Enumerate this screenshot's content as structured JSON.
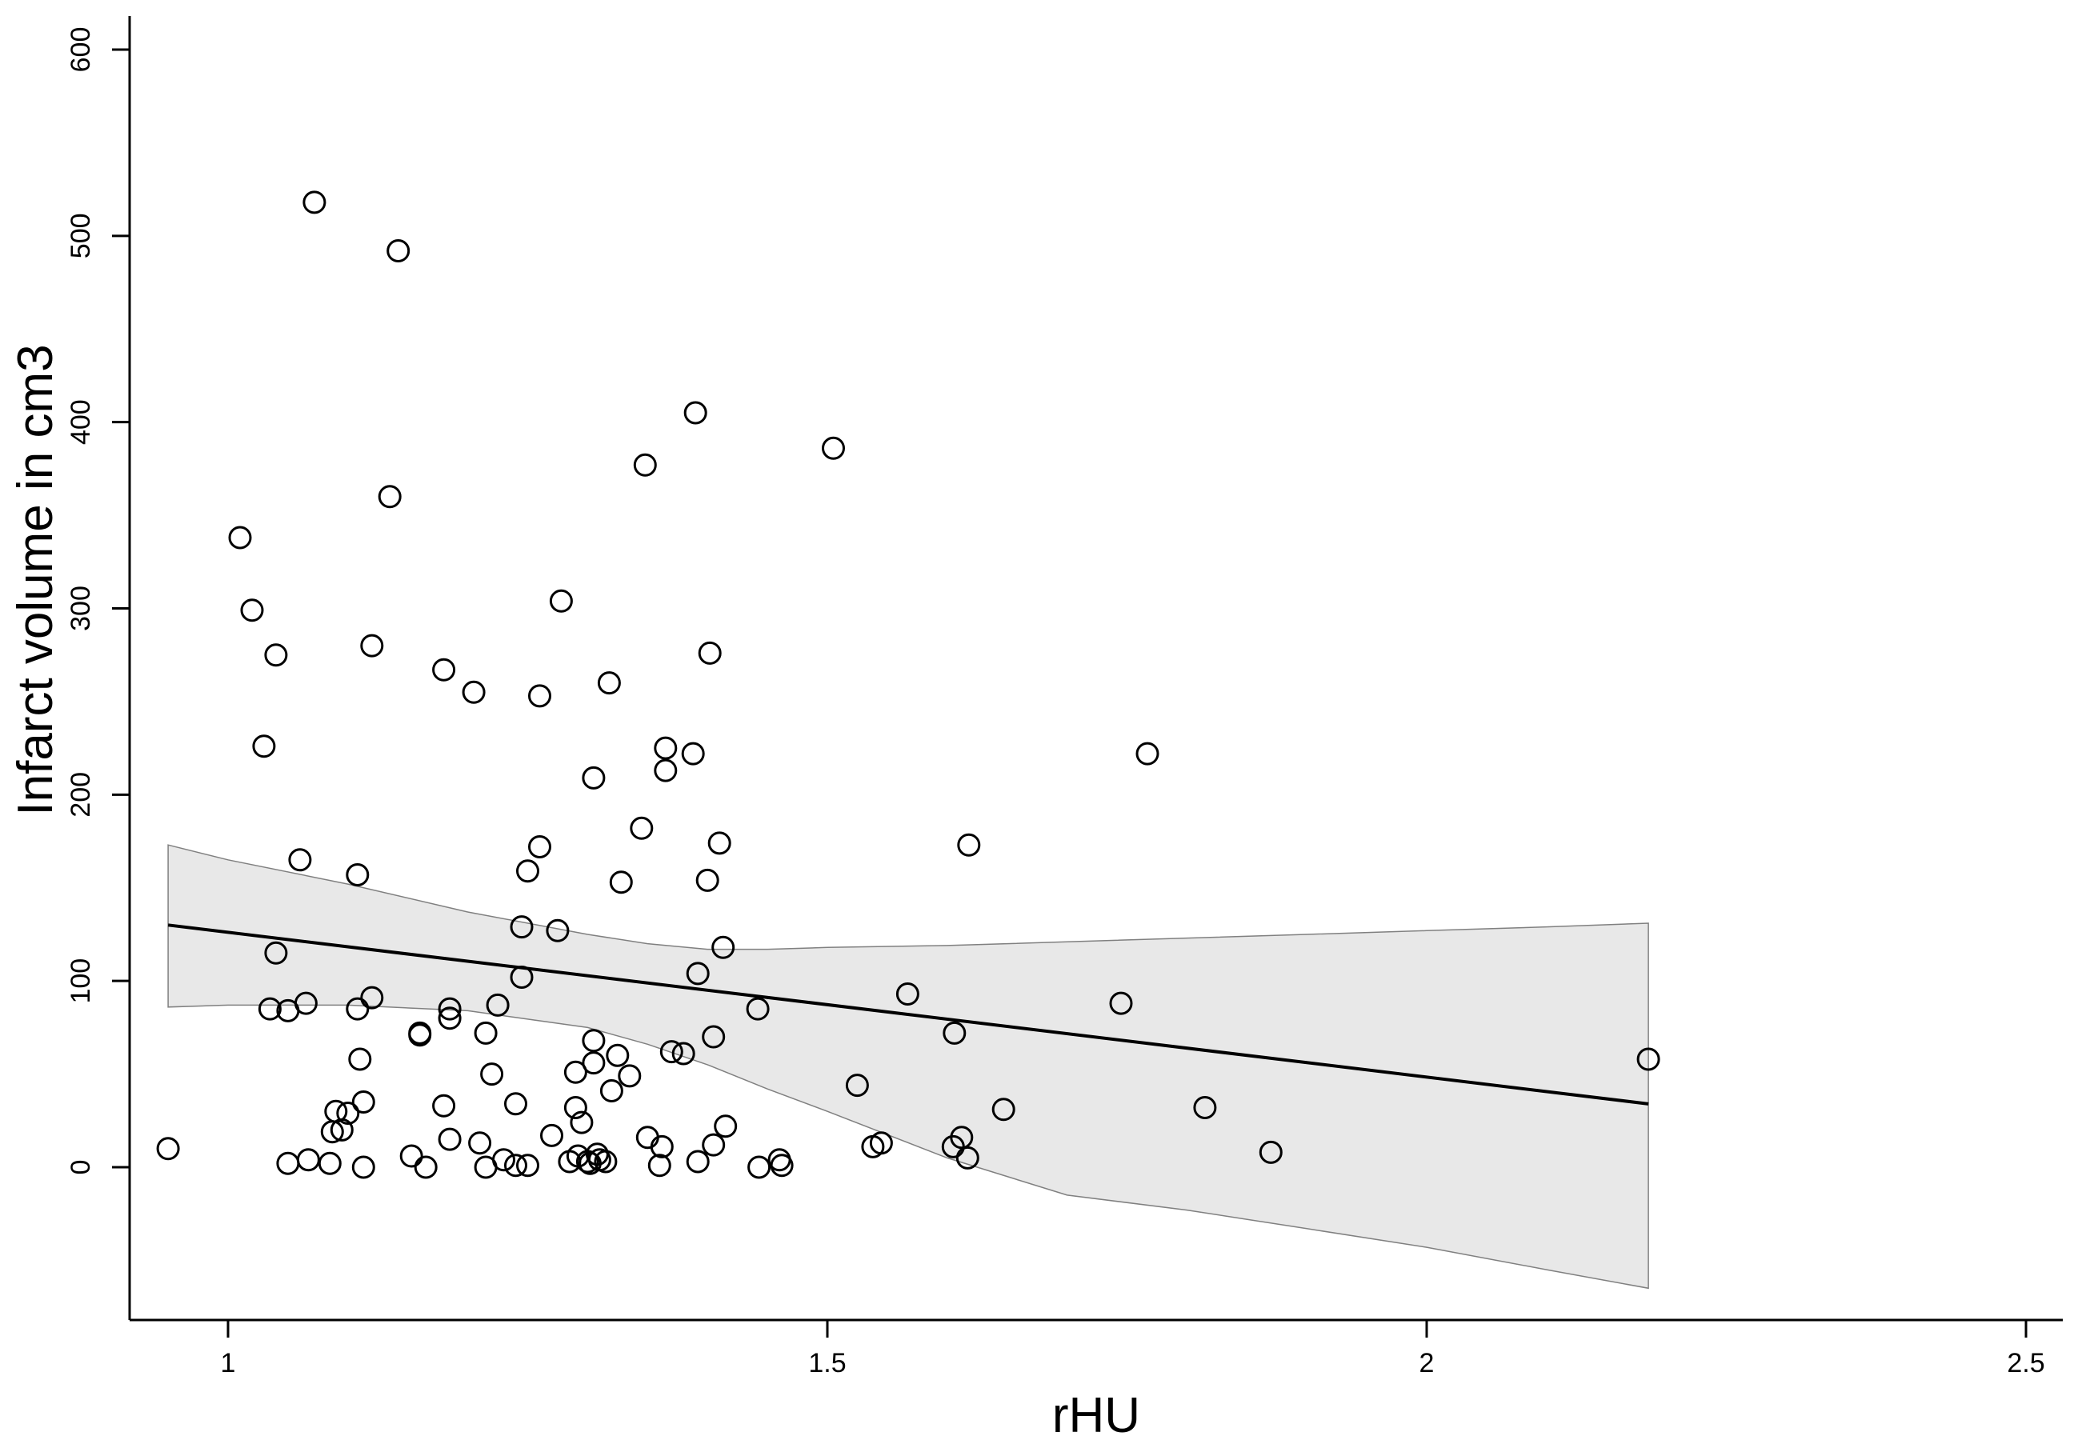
{
  "chart_data": {
    "type": "scatter",
    "title": "",
    "xlabel": "rHU",
    "ylabel": "Infarct volume in cm3",
    "xlim": [
      0.92,
      2.53
    ],
    "ylim": [
      -80,
      620
    ],
    "x_ticks": [
      1,
      1.5,
      2,
      2.5
    ],
    "x_tick_labels": [
      "1",
      "1.5",
      "2",
      "2.5"
    ],
    "y_ticks": [
      0,
      100,
      200,
      300,
      400,
      500,
      600
    ],
    "y_tick_labels": [
      "0",
      "100",
      "200",
      "300",
      "400",
      "500",
      "600"
    ],
    "grid": false,
    "legend": "none",
    "marker": "open-circle",
    "colors": {
      "points": "#000000",
      "fit_line": "#000000",
      "confidence_band_fill": "#e8e8e8",
      "confidence_band_edge": "#808080",
      "axes": "#000000"
    },
    "points": [
      [
        0.95,
        10
      ],
      [
        1.01,
        338
      ],
      [
        1.02,
        299
      ],
      [
        1.03,
        226
      ],
      [
        1.035,
        85
      ],
      [
        1.04,
        275
      ],
      [
        1.04,
        115
      ],
      [
        1.05,
        84
      ],
      [
        1.05,
        2
      ],
      [
        1.06,
        165
      ],
      [
        1.065,
        88
      ],
      [
        1.067,
        4
      ],
      [
        1.072,
        518
      ],
      [
        1.085,
        2
      ],
      [
        1.087,
        19
      ],
      [
        1.09,
        30
      ],
      [
        1.095,
        20
      ],
      [
        1.1,
        29
      ],
      [
        1.108,
        157
      ],
      [
        1.108,
        85
      ],
      [
        1.11,
        58
      ],
      [
        1.113,
        35
      ],
      [
        1.113,
        0
      ],
      [
        1.12,
        91
      ],
      [
        1.12,
        280
      ],
      [
        1.135,
        360
      ],
      [
        1.142,
        492
      ],
      [
        1.153,
        6
      ],
      [
        1.16,
        72
      ],
      [
        1.16,
        71
      ],
      [
        1.165,
        0
      ],
      [
        1.18,
        267
      ],
      [
        1.18,
        33
      ],
      [
        1.185,
        15
      ],
      [
        1.185,
        80
      ],
      [
        1.185,
        85
      ],
      [
        1.205,
        255
      ],
      [
        1.21,
        13
      ],
      [
        1.215,
        72
      ],
      [
        1.215,
        0
      ],
      [
        1.22,
        50
      ],
      [
        1.225,
        87
      ],
      [
        1.23,
        4
      ],
      [
        1.24,
        34
      ],
      [
        1.24,
        1
      ],
      [
        1.245,
        102
      ],
      [
        1.245,
        129
      ],
      [
        1.25,
        159
      ],
      [
        1.25,
        1
      ],
      [
        1.26,
        172
      ],
      [
        1.26,
        253
      ],
      [
        1.27,
        17
      ],
      [
        1.275,
        127
      ],
      [
        1.278,
        304
      ],
      [
        1.285,
        3
      ],
      [
        1.29,
        32
      ],
      [
        1.29,
        51
      ],
      [
        1.292,
        6
      ],
      [
        1.295,
        24
      ],
      [
        1.3,
        3
      ],
      [
        1.302,
        2
      ],
      [
        1.305,
        209
      ],
      [
        1.305,
        68
      ],
      [
        1.305,
        56
      ],
      [
        1.308,
        7
      ],
      [
        1.31,
        4
      ],
      [
        1.315,
        3
      ],
      [
        1.318,
        260
      ],
      [
        1.32,
        41
      ],
      [
        1.325,
        60
      ],
      [
        1.328,
        153
      ],
      [
        1.335,
        49
      ],
      [
        1.345,
        182
      ],
      [
        1.348,
        377
      ],
      [
        1.35,
        16
      ],
      [
        1.36,
        1
      ],
      [
        1.362,
        11
      ],
      [
        1.365,
        225
      ],
      [
        1.365,
        213
      ],
      [
        1.37,
        62
      ],
      [
        1.38,
        61
      ],
      [
        1.388,
        222
      ],
      [
        1.39,
        405
      ],
      [
        1.392,
        104
      ],
      [
        1.392,
        3
      ],
      [
        1.4,
        154
      ],
      [
        1.402,
        276
      ],
      [
        1.405,
        70
      ],
      [
        1.405,
        12
      ],
      [
        1.41,
        174
      ],
      [
        1.413,
        118
      ],
      [
        1.415,
        22
      ],
      [
        1.442,
        85
      ],
      [
        1.443,
        0
      ],
      [
        1.46,
        4
      ],
      [
        1.462,
        1
      ],
      [
        1.505,
        386
      ],
      [
        1.525,
        44
      ],
      [
        1.538,
        11
      ],
      [
        1.545,
        13
      ],
      [
        1.567,
        93
      ],
      [
        1.605,
        11
      ],
      [
        1.606,
        72
      ],
      [
        1.612,
        16
      ],
      [
        1.617,
        5
      ],
      [
        1.618,
        173
      ],
      [
        1.647,
        31
      ],
      [
        1.745,
        88
      ],
      [
        1.767,
        222
      ],
      [
        1.815,
        32
      ],
      [
        1.87,
        8
      ],
      [
        2.185,
        58
      ]
    ],
    "fit_line": {
      "x": [
        0.95,
        2.185
      ],
      "y": [
        130,
        34
      ]
    },
    "confidence_band": {
      "x": [
        0.95,
        1.0,
        1.1,
        1.2,
        1.3,
        1.35,
        1.4,
        1.45,
        1.5,
        1.6,
        1.7,
        1.8,
        1.9,
        2.0,
        2.1,
        2.185
      ],
      "upper": [
        173,
        165,
        152,
        137,
        125,
        120,
        117,
        117,
        118,
        119,
        121,
        123,
        125,
        127,
        129,
        131
      ],
      "lower": [
        86,
        87,
        87,
        84,
        75,
        66,
        55,
        42,
        30,
        5,
        -15,
        -23,
        -33,
        -43,
        -55,
        -65
      ]
    }
  }
}
